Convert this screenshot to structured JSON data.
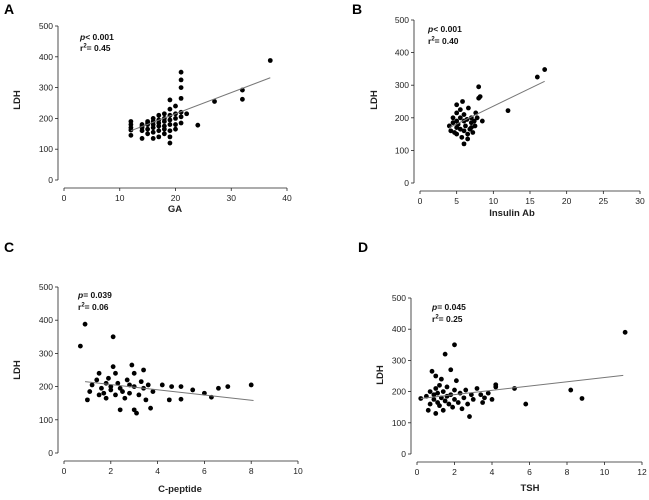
{
  "chart_data": [
    {
      "panel": "A",
      "type": "scatter",
      "title": "",
      "xlabel": "GA",
      "ylabel": "LDH",
      "xlim": [
        0,
        40
      ],
      "ylim": [
        0,
        500
      ],
      "xticks": [
        0,
        10,
        20,
        30,
        40
      ],
      "yticks": [
        0,
        100,
        200,
        300,
        400,
        500
      ],
      "stats": {
        "p_symbol": "p",
        "p_value": "< 0.001",
        "r_symbol": "r",
        "r_exp": "2",
        "r_value": "= 0.45"
      },
      "fit": {
        "x": [
          12,
          37
        ],
        "y": [
          160,
          332
        ]
      },
      "points": [
        [
          12,
          145
        ],
        [
          12,
          162
        ],
        [
          12,
          170
        ],
        [
          12,
          180
        ],
        [
          12,
          190
        ],
        [
          14,
          135
        ],
        [
          14,
          160
        ],
        [
          14,
          170
        ],
        [
          14,
          175
        ],
        [
          14,
          180
        ],
        [
          15,
          150
        ],
        [
          15,
          165
        ],
        [
          15,
          180
        ],
        [
          15,
          185
        ],
        [
          15,
          190
        ],
        [
          16,
          135
        ],
        [
          16,
          155
        ],
        [
          16,
          170
        ],
        [
          16,
          180
        ],
        [
          16,
          190
        ],
        [
          16,
          200
        ],
        [
          17,
          140
        ],
        [
          17,
          160
        ],
        [
          17,
          175
        ],
        [
          17,
          185
        ],
        [
          17,
          195
        ],
        [
          17,
          210
        ],
        [
          18,
          150
        ],
        [
          18,
          165
        ],
        [
          18,
          175
        ],
        [
          18,
          190
        ],
        [
          18,
          200
        ],
        [
          18,
          215
        ],
        [
          19,
          120
        ],
        [
          19,
          140
        ],
        [
          19,
          160
        ],
        [
          19,
          180
        ],
        [
          19,
          195
        ],
        [
          19,
          210
        ],
        [
          19,
          230
        ],
        [
          19,
          260
        ],
        [
          20,
          165
        ],
        [
          20,
          180
        ],
        [
          20,
          200
        ],
        [
          20,
          215
        ],
        [
          20,
          240
        ],
        [
          21,
          185
        ],
        [
          21,
          205
        ],
        [
          21,
          220
        ],
        [
          21,
          265
        ],
        [
          21,
          300
        ],
        [
          21,
          325
        ],
        [
          21,
          350
        ],
        [
          22,
          215
        ],
        [
          24,
          178
        ],
        [
          27,
          255
        ],
        [
          32,
          262
        ],
        [
          32,
          292
        ],
        [
          37,
          388
        ]
      ]
    },
    {
      "panel": "B",
      "type": "scatter",
      "title": "",
      "xlabel": "Insulin Ab",
      "ylabel": "LDH",
      "xlim": [
        0,
        30
      ],
      "ylim": [
        0,
        500
      ],
      "xticks": [
        0,
        5,
        10,
        15,
        20,
        25,
        30
      ],
      "yticks": [
        0,
        100,
        200,
        300,
        400,
        500
      ],
      "stats": {
        "p_symbol": "p",
        "p_value": "< 0.001",
        "r_symbol": "r",
        "r_exp": "2",
        "r_value": "= 0.40"
      },
      "fit": {
        "x": [
          4,
          17
        ],
        "y": [
          170,
          312
        ]
      },
      "points": [
        [
          4,
          175
        ],
        [
          4.2,
          160
        ],
        [
          4.5,
          185
        ],
        [
          4.5,
          200
        ],
        [
          4.7,
          155
        ],
        [
          5,
          150
        ],
        [
          5,
          170
        ],
        [
          5,
          190
        ],
        [
          5,
          215
        ],
        [
          5,
          240
        ],
        [
          5.2,
          180
        ],
        [
          5.5,
          165
        ],
        [
          5.5,
          200
        ],
        [
          5.5,
          225
        ],
        [
          5.7,
          140
        ],
        [
          5.8,
          250
        ],
        [
          6,
          120
        ],
        [
          6,
          160
        ],
        [
          6,
          190
        ],
        [
          6,
          210
        ],
        [
          6.2,
          175
        ],
        [
          6.4,
          195
        ],
        [
          6.5,
          135
        ],
        [
          6.5,
          150
        ],
        [
          6.6,
          230
        ],
        [
          6.8,
          165
        ],
        [
          7,
          170
        ],
        [
          7,
          185
        ],
        [
          7,
          200
        ],
        [
          7.2,
          155
        ],
        [
          7.4,
          190
        ],
        [
          7.5,
          175
        ],
        [
          7.6,
          215
        ],
        [
          7.8,
          200
        ],
        [
          8,
          260
        ],
        [
          8,
          295
        ],
        [
          8.2,
          265
        ],
        [
          8.5,
          190
        ],
        [
          12,
          222
        ],
        [
          16,
          325
        ],
        [
          17,
          348
        ]
      ]
    },
    {
      "panel": "C",
      "type": "scatter",
      "title": "",
      "xlabel": "C-peptide",
      "ylabel": "LDH",
      "xlim": [
        0,
        10
      ],
      "ylim": [
        0,
        500
      ],
      "xticks": [
        0,
        2,
        4,
        6,
        8,
        10
      ],
      "yticks": [
        0,
        100,
        200,
        300,
        400,
        500
      ],
      "stats": {
        "p_symbol": "p",
        "p_value": "= 0.039",
        "r_symbol": "r",
        "r_exp": "2",
        "r_value": "= 0.06"
      },
      "fit": {
        "x": [
          0.9,
          8.1
        ],
        "y": [
          215,
          158
        ]
      },
      "points": [
        [
          0.7,
          322
        ],
        [
          0.9,
          388
        ],
        [
          1,
          160
        ],
        [
          1.1,
          185
        ],
        [
          1.2,
          205
        ],
        [
          1.4,
          220
        ],
        [
          1.5,
          175
        ],
        [
          1.5,
          240
        ],
        [
          1.6,
          195
        ],
        [
          1.7,
          180
        ],
        [
          1.8,
          165
        ],
        [
          1.8,
          210
        ],
        [
          1.9,
          225
        ],
        [
          2,
          190
        ],
        [
          2,
          200
        ],
        [
          2.1,
          350
        ],
        [
          2.1,
          260
        ],
        [
          2.2,
          240
        ],
        [
          2.2,
          175
        ],
        [
          2.3,
          210
        ],
        [
          2.4,
          195
        ],
        [
          2.4,
          130
        ],
        [
          2.5,
          185
        ],
        [
          2.6,
          165
        ],
        [
          2.7,
          220
        ],
        [
          2.8,
          205
        ],
        [
          2.8,
          180
        ],
        [
          2.9,
          265
        ],
        [
          3,
          130
        ],
        [
          3,
          200
        ],
        [
          3,
          240
        ],
        [
          3.1,
          120
        ],
        [
          3.2,
          175
        ],
        [
          3.3,
          215
        ],
        [
          3.4,
          195
        ],
        [
          3.4,
          250
        ],
        [
          3.5,
          160
        ],
        [
          3.6,
          205
        ],
        [
          3.7,
          135
        ],
        [
          3.8,
          185
        ],
        [
          4.2,
          205
        ],
        [
          4.5,
          160
        ],
        [
          4.6,
          200
        ],
        [
          5,
          200
        ],
        [
          5,
          162
        ],
        [
          5.5,
          190
        ],
        [
          6,
          180
        ],
        [
          6.3,
          168
        ],
        [
          6.6,
          195
        ],
        [
          7,
          200
        ],
        [
          8,
          205
        ]
      ]
    },
    {
      "panel": "D",
      "type": "scatter",
      "title": "",
      "xlabel": "TSH",
      "ylabel": "LDH",
      "xlim": [
        0,
        12
      ],
      "ylim": [
        0,
        500
      ],
      "xticks": [
        0,
        2,
        4,
        6,
        8,
        10,
        12
      ],
      "yticks": [
        0,
        100,
        200,
        300,
        400,
        500
      ],
      "stats": {
        "p_symbol": "p",
        "p_value": "= 0.045",
        "r_symbol": "r",
        "r_exp": "2",
        "r_value": "= 0.25"
      },
      "fit": {
        "x": [
          0.2,
          11
        ],
        "y": [
          178,
          252
        ]
      },
      "points": [
        [
          0.2,
          178
        ],
        [
          0.5,
          185
        ],
        [
          0.6,
          140
        ],
        [
          0.7,
          160
        ],
        [
          0.7,
          200
        ],
        [
          0.8,
          265
        ],
        [
          0.9,
          175
        ],
        [
          0.9,
          190
        ],
        [
          1,
          130
        ],
        [
          1,
          210
        ],
        [
          1,
          250
        ],
        [
          1.1,
          165
        ],
        [
          1.1,
          195
        ],
        [
          1.2,
          220
        ],
        [
          1.2,
          155
        ],
        [
          1.3,
          180
        ],
        [
          1.3,
          240
        ],
        [
          1.4,
          140
        ],
        [
          1.4,
          200
        ],
        [
          1.5,
          170
        ],
        [
          1.5,
          320
        ],
        [
          1.6,
          185
        ],
        [
          1.6,
          215
        ],
        [
          1.7,
          160
        ],
        [
          1.8,
          270
        ],
        [
          1.8,
          190
        ],
        [
          1.9,
          150
        ],
        [
          2,
          350
        ],
        [
          2,
          205
        ],
        [
          2,
          175
        ],
        [
          2.1,
          235
        ],
        [
          2.2,
          165
        ],
        [
          2.3,
          195
        ],
        [
          2.4,
          145
        ],
        [
          2.5,
          180
        ],
        [
          2.6,
          205
        ],
        [
          2.7,
          160
        ],
        [
          2.8,
          120
        ],
        [
          2.9,
          190
        ],
        [
          3,
          175
        ],
        [
          3.2,
          210
        ],
        [
          3.4,
          190
        ],
        [
          3.5,
          165
        ],
        [
          3.6,
          180
        ],
        [
          3.8,
          195
        ],
        [
          4,
          175
        ],
        [
          4.2,
          222
        ],
        [
          4.2,
          215
        ],
        [
          5.2,
          210
        ],
        [
          5.8,
          160
        ],
        [
          8.2,
          205
        ],
        [
          8.8,
          178
        ],
        [
          11.1,
          390
        ]
      ]
    }
  ]
}
